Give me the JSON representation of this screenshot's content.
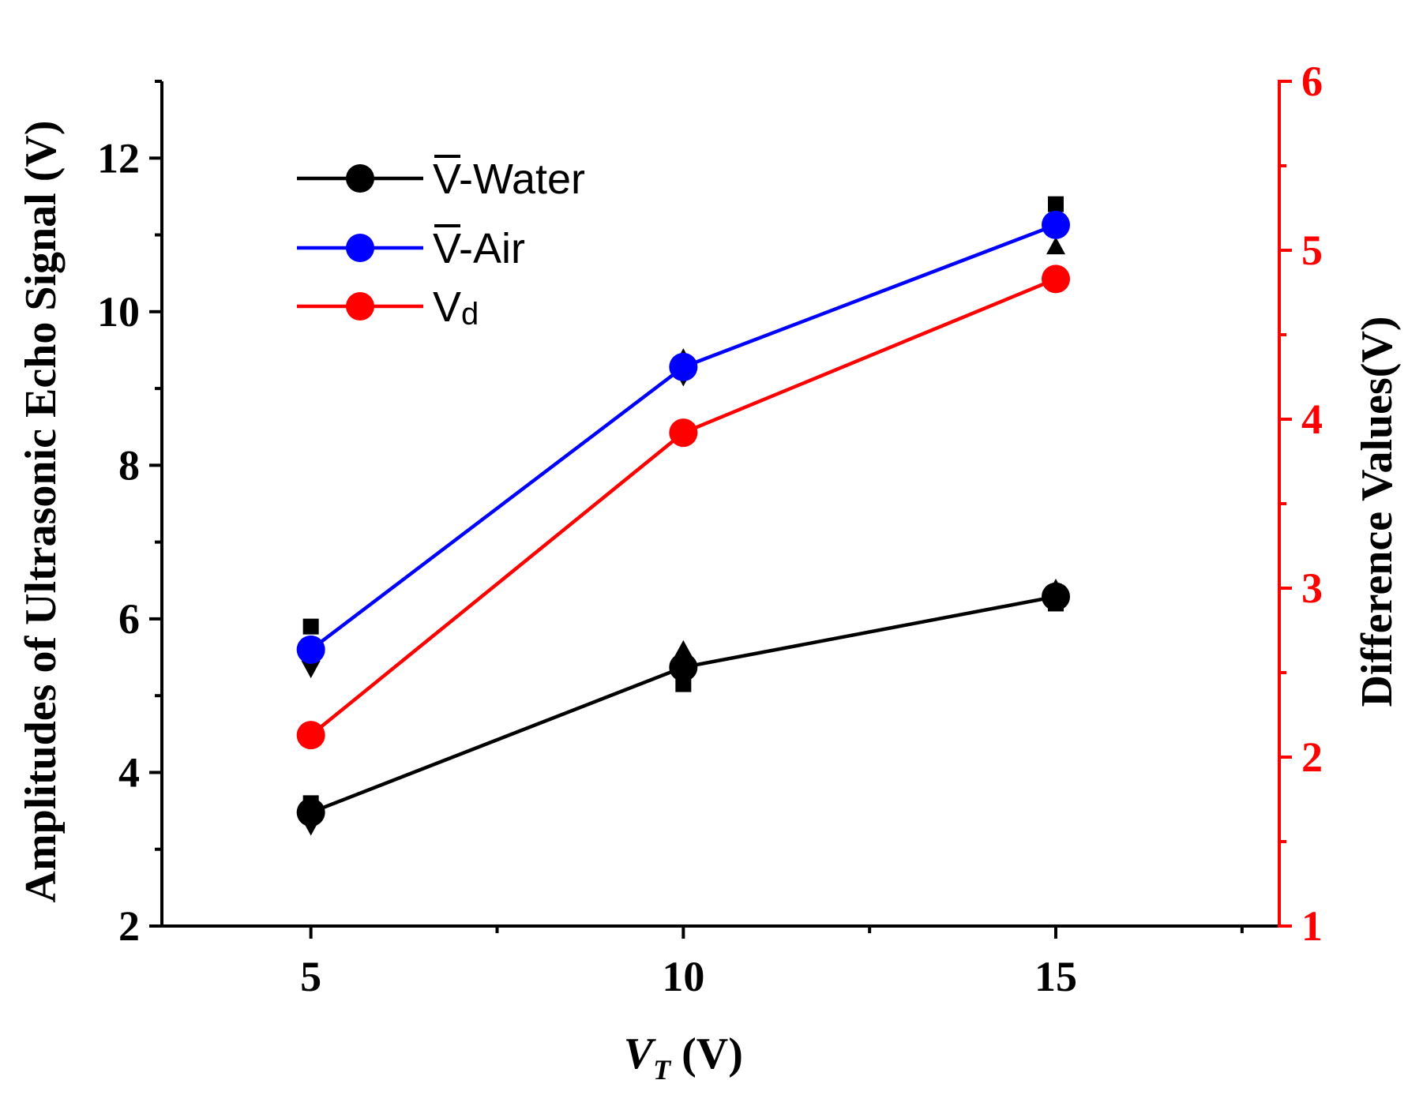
{
  "chart_data": {
    "type": "line",
    "x": [
      5,
      10,
      15
    ],
    "xlim": [
      3,
      18
    ],
    "x_ticks": [
      "5",
      "10",
      "15"
    ],
    "xlabel_main": "V",
    "xlabel_sub": "T",
    "xlabel_unit": " (V)",
    "ylabel_left": "Amplitudes of Ultrasonic Echo Signal (V)",
    "ylim_left": [
      2,
      13
    ],
    "y_ticks_left": [
      "2",
      "4",
      "6",
      "8",
      "10",
      "12"
    ],
    "ylabel_right": "Difference Values(V)",
    "ylim_right": [
      1,
      6
    ],
    "y_ticks_right": [
      "1",
      "2",
      "3",
      "4",
      "5",
      "6"
    ],
    "legend_position": "top-left",
    "series": [
      {
        "key": "water",
        "name_base": "V",
        "name_suffix": "-Water",
        "overline": true,
        "axis": "left",
        "color": "#000000",
        "values": [
          3.48,
          5.37,
          6.29
        ]
      },
      {
        "key": "air",
        "name_base": "V",
        "name_suffix": "-Air",
        "overline": true,
        "axis": "left",
        "color": "#0000ff",
        "values": [
          5.6,
          9.28,
          11.13
        ]
      },
      {
        "key": "vd",
        "name_base": "V",
        "name_suffix": "d",
        "overline": false,
        "axis": "right",
        "color": "#ff0000",
        "values": [
          2.13,
          3.92,
          4.83
        ]
      }
    ],
    "replicates": {
      "water": {
        "square": [
          3.6,
          5.15,
          6.2
        ],
        "up_triangle": [
          3.45,
          5.6,
          6.4
        ],
        "down_triangle": [
          3.3,
          5.4,
          6.3
        ]
      },
      "air": {
        "square": [
          5.9,
          9.3,
          11.4
        ],
        "up_triangle": [
          5.55,
          9.4,
          10.85
        ],
        "down_triangle": [
          5.35,
          9.15,
          11.15
        ]
      }
    },
    "axis_color_right": "#ff0000"
  }
}
